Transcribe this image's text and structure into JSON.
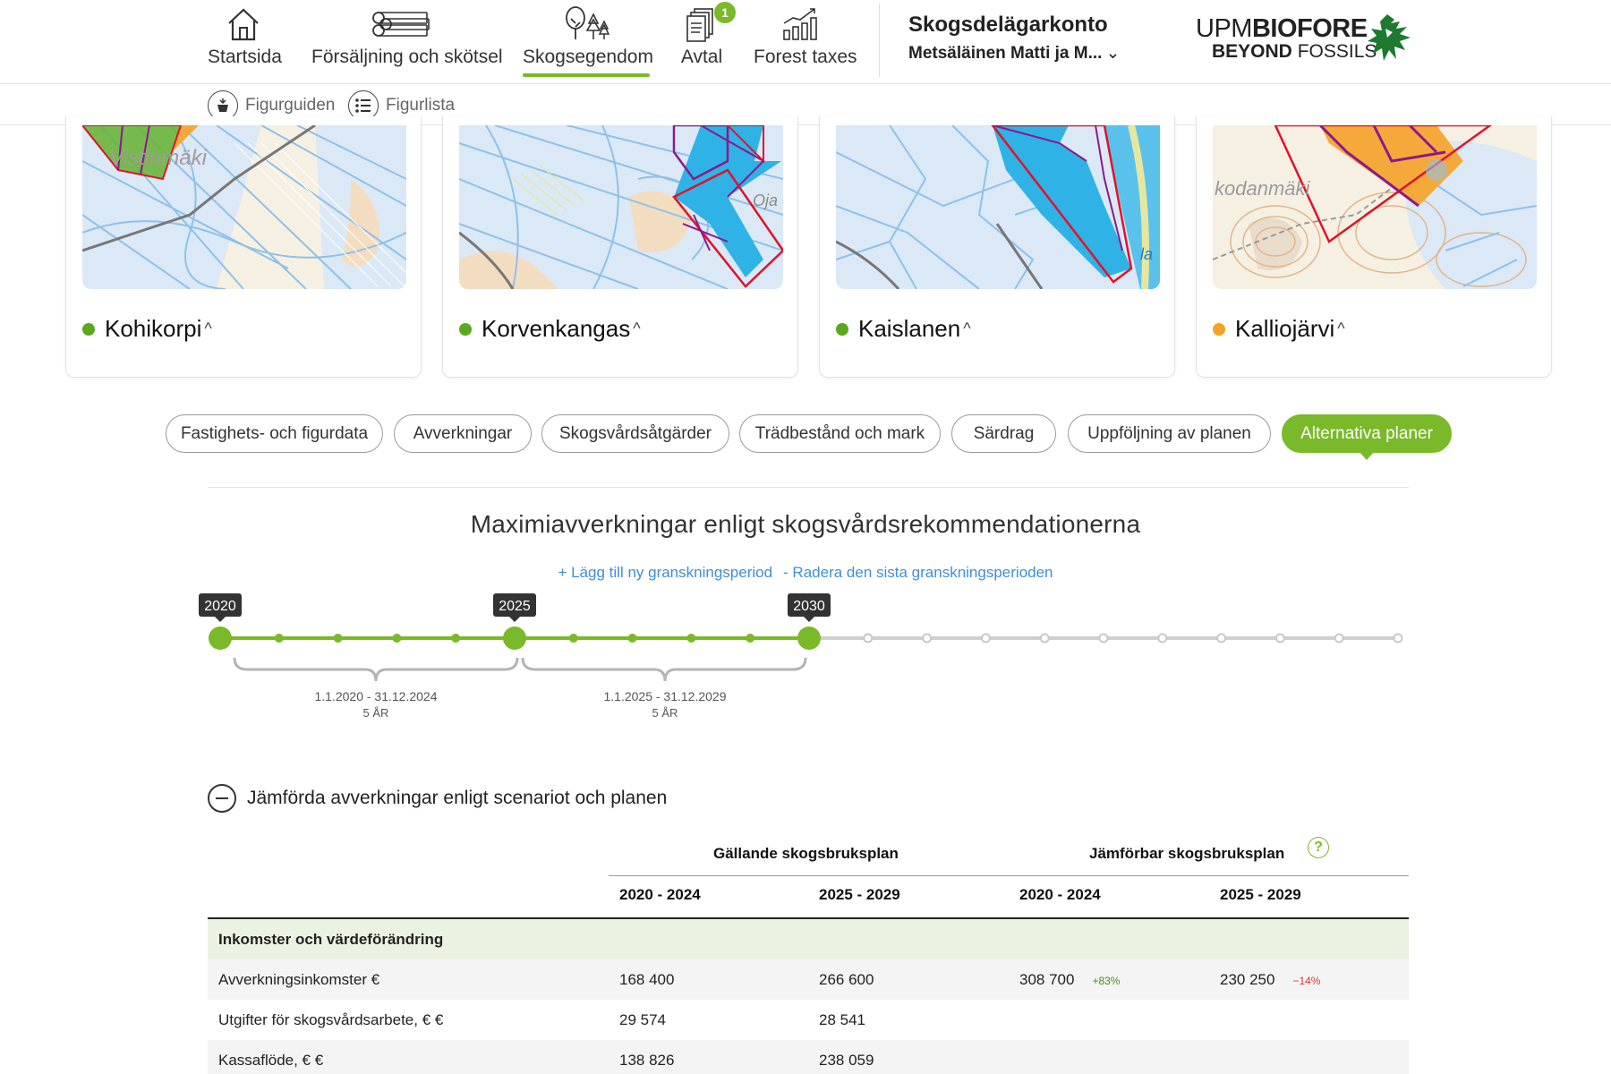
{
  "nav": {
    "items": [
      {
        "label": "Startsida",
        "icon": "house-icon"
      },
      {
        "label": "Försäljning och skötsel",
        "icon": "logs-icon"
      },
      {
        "label": "Skogsegendom",
        "icon": "trees-icon",
        "active": true
      },
      {
        "label": "Avtal",
        "icon": "documents-icon",
        "badge": "1"
      },
      {
        "label": "Forest taxes",
        "icon": "chart-icon"
      }
    ],
    "account_title": "Skogsdelägarkonto",
    "account_user": "Metsäläinen Matti ja M...",
    "logo": {
      "upm": "UPM",
      "biofore": "BIOFORE",
      "beyond": "BEYOND",
      "fossils": "FOSSILS"
    }
  },
  "subbar": {
    "figure_guide": "Figurguiden",
    "figure_list": "Figurlista"
  },
  "cards": [
    {
      "name": "Kohikorpi",
      "status_color": "#5aa81e",
      "map_label": "Vistinmäki"
    },
    {
      "name": "Korvenkangas",
      "status_color": "#5aa81e",
      "map_label": "Oja"
    },
    {
      "name": "Kaislanen",
      "status_color": "#5aa81e",
      "map_label": "la"
    },
    {
      "name": "Kalliojärvi",
      "status_color": "#f3a326",
      "map_label": "kodanmäki"
    }
  ],
  "tabs": [
    {
      "label": "Fastighets- och figurdata"
    },
    {
      "label": "Avverkningar"
    },
    {
      "label": "Skogsvårdsåtgärder"
    },
    {
      "label": "Trädbestånd och mark"
    },
    {
      "label": "Särdrag"
    },
    {
      "label": "Uppföljning av planen"
    },
    {
      "label": "Alternativa planer",
      "active": true
    }
  ],
  "timeline": {
    "title": "Maximiavverkningar enligt skogsvårdsrekommendationerna",
    "add_period": "+ Lägg till ny granskningsperiod",
    "remove_period": "- Radera den sista granskningsperioden",
    "milestones": [
      "2020",
      "2025",
      "2030"
    ],
    "periods": [
      {
        "range": "1.1.2020 - 31.12.2024",
        "length": "5 ÅR"
      },
      {
        "range": "1.1.2025 - 31.12.2029",
        "length": "5 ÅR"
      }
    ]
  },
  "comparison": {
    "title": "Jämförda avverkningar enligt scenariot och planen",
    "group_current": "Gällande skogsbruksplan",
    "group_comparable": "Jämförbar skogsbruksplan",
    "help": "?",
    "periods": [
      "2020 - 2024",
      "2025 - 2029",
      "2020 - 2024",
      "2025 - 2029"
    ],
    "section_label": "Inkomster och värdeförändring",
    "rows": [
      {
        "label": "Avverkningsinkomster €",
        "v1": "168 400",
        "v2": "266 600",
        "v3": "308 700",
        "d3": "+83%",
        "v4": "230 250",
        "d4": "−14%"
      },
      {
        "label": "Utgifter för skogsvårdsarbete, € €",
        "v1": "29 574",
        "v2": "28 541"
      },
      {
        "label": "Kassaflöde, € €",
        "v1": "138 826",
        "v2": "238 059"
      }
    ]
  },
  "colors": {
    "accent": "#7ab929",
    "link": "#3f8fd2",
    "stand_blue": "#2fb2e6",
    "stand_orange": "#f6a93b",
    "stand_green": "#6ab43b",
    "border_red": "#e0122b",
    "border_purple": "#8a1a8a"
  }
}
